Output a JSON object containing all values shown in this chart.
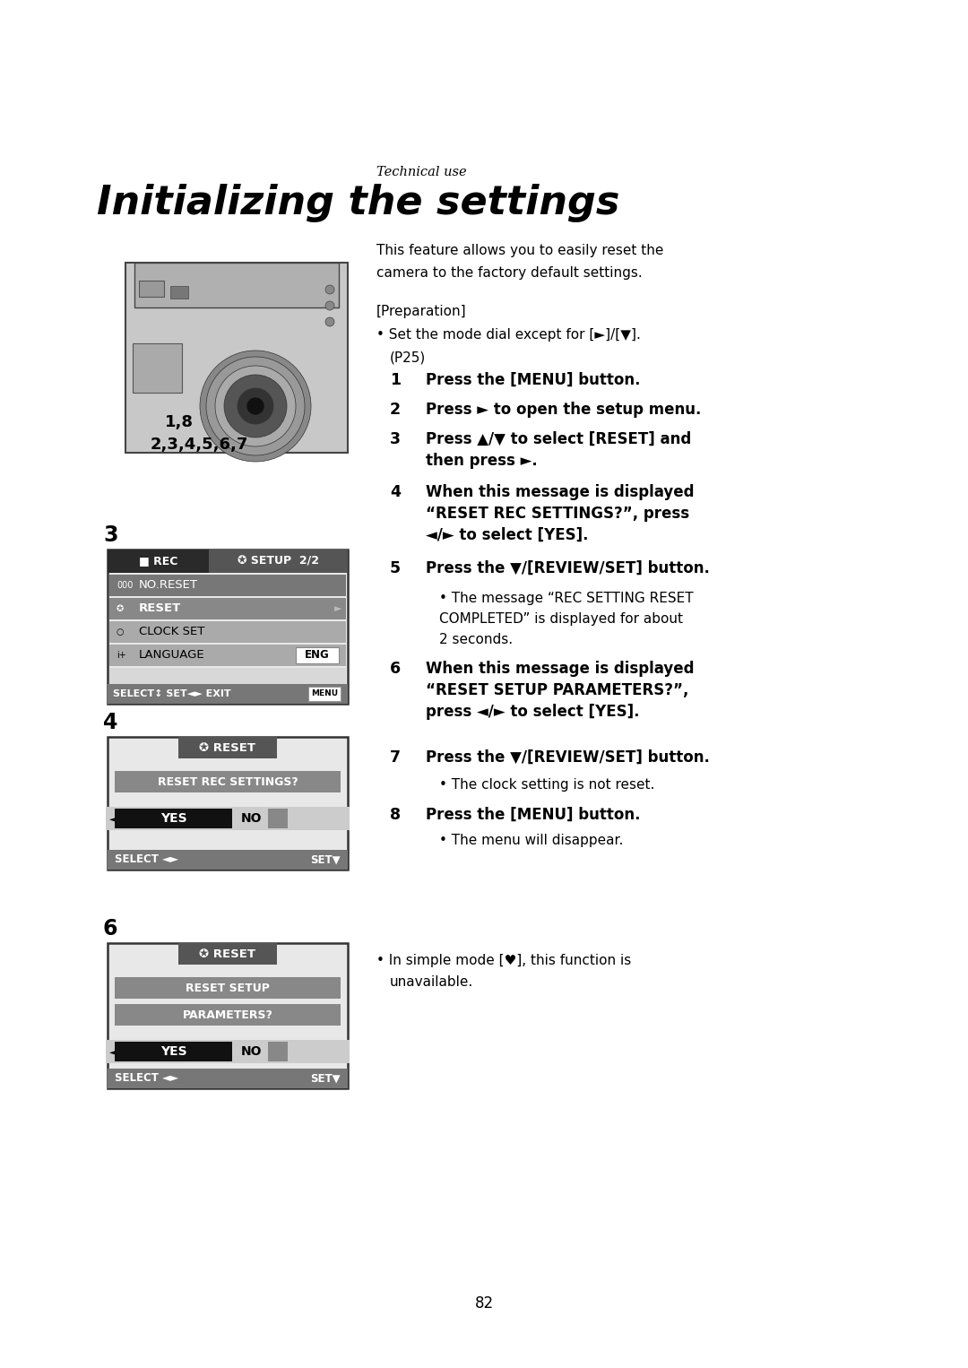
{
  "page_bg": "#ffffff",
  "page_number": "82",
  "technical_use": "Technical use",
  "title": "Initializing the settings",
  "intro_line1": "This feature allows you to easily reset the",
  "intro_line2": "camera to the factory default settings.",
  "preparation_header": "[Preparation]",
  "prep_bullet1": "• Set the mode dial except for [►]/[▼].",
  "prep_bullet2": "(P25)",
  "label_18": "1,8",
  "label_23": "2,3,4,5,6,7",
  "step1": "Press the [MENU] button.",
  "step2": "Press ► to open the setup menu.",
  "step3a": "Press ▲/▼ to select [RESET] and",
  "step3b": "then press ►.",
  "step4a": "When this message is displayed",
  "step4b": "“RESET REC SETTINGS?”, press",
  "step4c": "◄/► to select [YES].",
  "step5": "Press the ▼/[REVIEW/SET] button.",
  "step5b1": "• The message “REC SETTING RESET",
  "step5b2": "COMPLETED” is displayed for about",
  "step5b3": "2 seconds.",
  "step6a": "When this message is displayed",
  "step6b": "“RESET SETUP PARAMETERS?”,",
  "step6c": "press ◄/► to select [YES].",
  "step7": "Press the ▼/[REVIEW/SET] button.",
  "step7b": "• The clock setting is not reset.",
  "step8": "Press the [MENU] button.",
  "step8b": "• The menu will disappear.",
  "footer1": "• In simple mode [♥], this function is",
  "footer2": "unavailable.",
  "screen3_rec": "■REC",
  "screen3_setup": "✪ SETUP  2/2",
  "screen3_r1": "NO.RESET",
  "screen3_r2": "RESET",
  "screen3_r3": "CLOCK SET",
  "screen3_r4": "LANGUAGE",
  "screen3_eng": "ENG",
  "screen3_footer": "SELECT↕ SET◄► EXIT",
  "screen4_title": "✪ RESET",
  "screen4_msg": "RESET REC SETTINGS?",
  "screen_yes": "YES",
  "screen_no": "NO",
  "screen_footer_left": "SELECT ◄►",
  "screen_footer_right": "SET▼",
  "screen6_title": "✪ RESET",
  "screen6_msg1": "RESET SETUP",
  "screen6_msg2": "PARAMETERS?"
}
